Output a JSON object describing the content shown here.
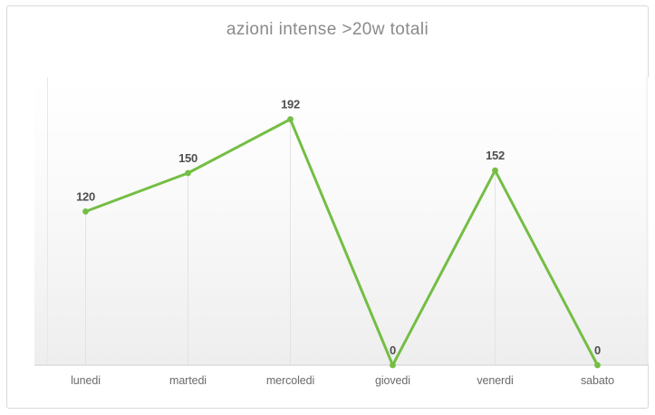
{
  "chart_data": {
    "type": "line",
    "title": "azioni intense >20w totali",
    "categories": [
      "lunedi",
      "martedi",
      "mercoledi",
      "giovedi",
      "venerdi",
      "sabato"
    ],
    "series": [
      {
        "name": "azioni intense >20w totali",
        "values": [
          120,
          150,
          192,
          0,
          152,
          0
        ]
      }
    ],
    "data_labels": [
      "120",
      "150",
      "192",
      "0",
      "152",
      "0"
    ],
    "xlabel": "",
    "ylabel": "",
    "ylim": [
      0,
      225
    ],
    "legend": "none",
    "grid": "drop-lines-per-point",
    "marker": "circle"
  },
  "style": {
    "series_color": "#74be44",
    "title_color": "#8a8a8a",
    "data_label_color": "#4f4f4f",
    "axis_label_color": "#6b6b6b",
    "axis_line_color": "#d6d6d6",
    "drop_line_color": "#e3e3e3",
    "edge_line_color": "#e8e8e8",
    "plot_gradient_top": "#ffffff",
    "plot_gradient_mid": "#fafafa",
    "plot_gradient_bottom": "#eeeeee",
    "card_border_color": "#d9d9d9"
  }
}
